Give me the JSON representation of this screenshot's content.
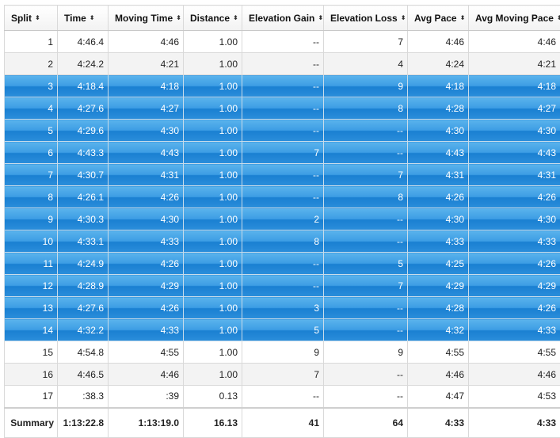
{
  "columns": [
    {
      "label": "Split"
    },
    {
      "label": "Time"
    },
    {
      "label": "Moving Time"
    },
    {
      "label": "Distance"
    },
    {
      "label": "Elevation Gain"
    },
    {
      "label": "Elevation Loss"
    },
    {
      "label": "Avg Pace"
    },
    {
      "label": "Avg Moving Pace"
    }
  ],
  "rows": [
    {
      "split": "1",
      "time": "4:46.4",
      "moving_time": "4:46",
      "distance": "1.00",
      "elev_gain": "--",
      "elev_loss": "7",
      "avg_pace": "4:46",
      "avg_moving_pace": "4:46",
      "selected": false
    },
    {
      "split": "2",
      "time": "4:24.2",
      "moving_time": "4:21",
      "distance": "1.00",
      "elev_gain": "--",
      "elev_loss": "4",
      "avg_pace": "4:24",
      "avg_moving_pace": "4:21",
      "selected": false
    },
    {
      "split": "3",
      "time": "4:18.4",
      "moving_time": "4:18",
      "distance": "1.00",
      "elev_gain": "--",
      "elev_loss": "9",
      "avg_pace": "4:18",
      "avg_moving_pace": "4:18",
      "selected": true
    },
    {
      "split": "4",
      "time": "4:27.6",
      "moving_time": "4:27",
      "distance": "1.00",
      "elev_gain": "--",
      "elev_loss": "8",
      "avg_pace": "4:28",
      "avg_moving_pace": "4:27",
      "selected": true
    },
    {
      "split": "5",
      "time": "4:29.6",
      "moving_time": "4:30",
      "distance": "1.00",
      "elev_gain": "--",
      "elev_loss": "--",
      "avg_pace": "4:30",
      "avg_moving_pace": "4:30",
      "selected": true
    },
    {
      "split": "6",
      "time": "4:43.3",
      "moving_time": "4:43",
      "distance": "1.00",
      "elev_gain": "7",
      "elev_loss": "--",
      "avg_pace": "4:43",
      "avg_moving_pace": "4:43",
      "selected": true
    },
    {
      "split": "7",
      "time": "4:30.7",
      "moving_time": "4:31",
      "distance": "1.00",
      "elev_gain": "--",
      "elev_loss": "7",
      "avg_pace": "4:31",
      "avg_moving_pace": "4:31",
      "selected": true
    },
    {
      "split": "8",
      "time": "4:26.1",
      "moving_time": "4:26",
      "distance": "1.00",
      "elev_gain": "--",
      "elev_loss": "8",
      "avg_pace": "4:26",
      "avg_moving_pace": "4:26",
      "selected": true
    },
    {
      "split": "9",
      "time": "4:30.3",
      "moving_time": "4:30",
      "distance": "1.00",
      "elev_gain": "2",
      "elev_loss": "--",
      "avg_pace": "4:30",
      "avg_moving_pace": "4:30",
      "selected": true
    },
    {
      "split": "10",
      "time": "4:33.1",
      "moving_time": "4:33",
      "distance": "1.00",
      "elev_gain": "8",
      "elev_loss": "--",
      "avg_pace": "4:33",
      "avg_moving_pace": "4:33",
      "selected": true
    },
    {
      "split": "11",
      "time": "4:24.9",
      "moving_time": "4:26",
      "distance": "1.00",
      "elev_gain": "--",
      "elev_loss": "5",
      "avg_pace": "4:25",
      "avg_moving_pace": "4:26",
      "selected": true
    },
    {
      "split": "12",
      "time": "4:28.9",
      "moving_time": "4:29",
      "distance": "1.00",
      "elev_gain": "--",
      "elev_loss": "7",
      "avg_pace": "4:29",
      "avg_moving_pace": "4:29",
      "selected": true
    },
    {
      "split": "13",
      "time": "4:27.6",
      "moving_time": "4:26",
      "distance": "1.00",
      "elev_gain": "3",
      "elev_loss": "--",
      "avg_pace": "4:28",
      "avg_moving_pace": "4:26",
      "selected": true
    },
    {
      "split": "14",
      "time": "4:32.2",
      "moving_time": "4:33",
      "distance": "1.00",
      "elev_gain": "5",
      "elev_loss": "--",
      "avg_pace": "4:32",
      "avg_moving_pace": "4:33",
      "selected": true
    },
    {
      "split": "15",
      "time": "4:54.8",
      "moving_time": "4:55",
      "distance": "1.00",
      "elev_gain": "9",
      "elev_loss": "9",
      "avg_pace": "4:55",
      "avg_moving_pace": "4:55",
      "selected": false
    },
    {
      "split": "16",
      "time": "4:46.5",
      "moving_time": "4:46",
      "distance": "1.00",
      "elev_gain": "7",
      "elev_loss": "--",
      "avg_pace": "4:46",
      "avg_moving_pace": "4:46",
      "selected": false
    },
    {
      "split": "17",
      "time": ":38.3",
      "moving_time": ":39",
      "distance": "0.13",
      "elev_gain": "--",
      "elev_loss": "--",
      "avg_pace": "4:47",
      "avg_moving_pace": "4:53",
      "selected": false
    }
  ],
  "summary": {
    "label": "Summary",
    "time": "1:13:22.8",
    "moving_time": "1:13:19.0",
    "distance": "16.13",
    "elev_gain": "41",
    "elev_loss": "64",
    "avg_pace": "4:33",
    "avg_moving_pace": "4:33"
  },
  "icons": {
    "sort": "sort-up-down-icon"
  },
  "colors": {
    "selected_row_top": "#5ab3ec",
    "selected_row_bottom": "#1a80d2",
    "alt_row": "#f3f3f3",
    "grid": "#d9d9d9"
  }
}
